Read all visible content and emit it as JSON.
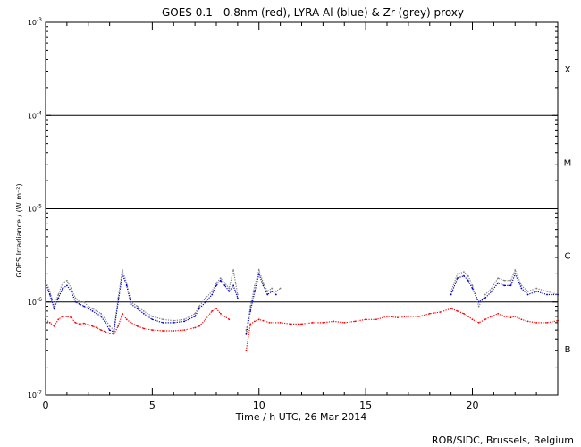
{
  "chart_data": {
    "type": "line",
    "title": "GOES 0.1—0.8nm (red), LYRA Al (blue) & Zr (grey) proxy",
    "xlabel": "Time / h UTC, 26 Mar 2014",
    "ylabel": "GOES Irradiance / (W m⁻²)",
    "xlim": [
      0,
      24
    ],
    "ylim": [
      1e-07,
      0.001
    ],
    "yscale": "log",
    "x_ticks": [
      0,
      5,
      10,
      15,
      20
    ],
    "y_tick_labels": [
      {
        "value": 1e-07,
        "base": "10",
        "exp": "-7"
      },
      {
        "value": 1e-06,
        "base": "10",
        "exp": "-6"
      },
      {
        "value": 1e-05,
        "base": "10",
        "exp": "-5"
      },
      {
        "value": 0.0001,
        "base": "10",
        "exp": "-4"
      },
      {
        "value": 0.001,
        "base": "10",
        "exp": "-3"
      }
    ],
    "flare_class_lines": [
      1e-06,
      1e-05,
      0.0001
    ],
    "flare_classes": [
      {
        "label": "B",
        "value": 3.16e-07
      },
      {
        "label": "C",
        "value": 3.16e-06
      },
      {
        "label": "M",
        "value": 3.16e-05
      },
      {
        "label": "X",
        "value": 0.000316
      }
    ],
    "series": [
      {
        "name": "GOES 0.1—0.8nm",
        "color": "#ff0000",
        "x": [
          0.0,
          0.2,
          0.4,
          0.6,
          0.8,
          1.0,
          1.2,
          1.4,
          1.6,
          1.8,
          2.0,
          2.2,
          2.4,
          2.6,
          2.8,
          3.0,
          3.2,
          3.4,
          3.6,
          3.8,
          4.0,
          4.3,
          4.6,
          5.0,
          5.5,
          6.0,
          6.5,
          7.0,
          7.2,
          7.5,
          7.8,
          8.0,
          8.2,
          8.4,
          8.6,
          9.0,
          9.4,
          9.6,
          9.8,
          10.0,
          10.2,
          10.5,
          11.0,
          11.5,
          12.0,
          12.5,
          13.0,
          13.5,
          14.0,
          14.5,
          15.0,
          15.5,
          16.0,
          16.5,
          17.0,
          17.5,
          18.0,
          18.5,
          19.0,
          19.3,
          19.6,
          19.8,
          20.0,
          20.3,
          20.6,
          20.9,
          21.2,
          21.5,
          21.8,
          22.0,
          22.3,
          22.6,
          23.0,
          23.5,
          24.0
        ],
        "y": [
          6.5e-07,
          6e-07,
          5.5e-07,
          6.5e-07,
          7e-07,
          7e-07,
          6.8e-07,
          6e-07,
          5.8e-07,
          5.9e-07,
          5.7e-07,
          5.5e-07,
          5.3e-07,
          5e-07,
          4.8e-07,
          4.6e-07,
          4.5e-07,
          5.5e-07,
          7.5e-07,
          6.5e-07,
          6e-07,
          5.5e-07,
          5.2e-07,
          5e-07,
          4.9e-07,
          4.9e-07,
          5e-07,
          5.3e-07,
          5.5e-07,
          6.5e-07,
          8e-07,
          8.5e-07,
          7.5e-07,
          7e-07,
          6.5e-07,
          null,
          3e-07,
          5.8e-07,
          6.2e-07,
          6.5e-07,
          6.3e-07,
          6e-07,
          6e-07,
          5.8e-07,
          5.8e-07,
          6e-07,
          6e-07,
          6.2e-07,
          6e-07,
          6.2e-07,
          6.5e-07,
          6.5e-07,
          7e-07,
          6.8e-07,
          7e-07,
          7e-07,
          7.5e-07,
          7.8e-07,
          8.5e-07,
          8e-07,
          7.5e-07,
          7e-07,
          6.5e-07,
          6e-07,
          6.5e-07,
          7e-07,
          7.5e-07,
          7e-07,
          6.8e-07,
          7e-07,
          6.5e-07,
          6.2e-07,
          6e-07,
          6e-07,
          6.3e-07
        ]
      },
      {
        "name": "LYRA Al",
        "color": "#0000cc",
        "x": [
          0.0,
          0.2,
          0.4,
          0.6,
          0.8,
          1.0,
          1.2,
          1.4,
          1.6,
          1.8,
          2.0,
          2.2,
          2.4,
          2.6,
          2.8,
          3.0,
          3.2,
          3.4,
          3.6,
          3.8,
          4.0,
          4.3,
          4.6,
          5.0,
          5.5,
          6.0,
          6.5,
          7.0,
          7.2,
          7.5,
          7.8,
          8.0,
          8.2,
          8.4,
          8.6,
          8.8,
          9.0,
          null,
          9.4,
          9.6,
          9.8,
          10.0,
          10.2,
          10.4,
          10.6,
          10.8,
          null,
          19.0,
          19.3,
          19.6,
          19.8,
          20.0,
          20.3,
          20.6,
          20.9,
          21.2,
          21.5,
          21.8,
          22.0,
          22.3,
          22.6,
          23.0,
          23.5,
          24.0
        ],
        "y": [
          1.6e-06,
          1.2e-06,
          8.5e-07,
          1.1e-06,
          1.4e-06,
          1.5e-06,
          1.3e-06,
          1e-06,
          9.5e-07,
          9e-07,
          8.5e-07,
          8e-07,
          7.5e-07,
          7e-07,
          6e-07,
          5e-07,
          4.8e-07,
          1e-06,
          2e-06,
          1.5e-06,
          9.5e-07,
          8.5e-07,
          7.5e-07,
          6.5e-07,
          6e-07,
          6e-07,
          6.2e-07,
          7e-07,
          8.5e-07,
          1e-06,
          1.2e-06,
          1.5e-06,
          1.7e-06,
          1.5e-06,
          1.3e-06,
          1.5e-06,
          1.1e-06,
          null,
          4.5e-07,
          8e-07,
          1.3e-06,
          2e-06,
          1.5e-06,
          1.2e-06,
          1.3e-06,
          1.2e-06,
          null,
          1.2e-06,
          1.8e-06,
          1.9e-06,
          1.7e-06,
          1.4e-06,
          1e-06,
          1.1e-06,
          1.3e-06,
          1.6e-06,
          1.5e-06,
          1.5e-06,
          2e-06,
          1.4e-06,
          1.2e-06,
          1.3e-06,
          1.2e-06,
          1.2e-06
        ]
      },
      {
        "name": "Zr",
        "color": "#808080",
        "x": [
          0.0,
          0.2,
          0.4,
          0.6,
          0.8,
          1.0,
          1.2,
          1.4,
          1.6,
          1.8,
          2.0,
          2.2,
          2.4,
          2.6,
          2.8,
          3.0,
          3.2,
          3.4,
          3.6,
          3.8,
          4.0,
          4.3,
          4.6,
          5.0,
          5.5,
          6.0,
          6.5,
          7.0,
          7.2,
          7.5,
          7.8,
          8.0,
          8.2,
          8.4,
          8.6,
          8.8,
          9.0,
          null,
          9.4,
          9.6,
          9.8,
          10.0,
          10.2,
          10.4,
          10.6,
          10.8,
          11.0,
          null,
          19.0,
          19.3,
          19.6,
          19.8,
          20.0,
          20.3,
          20.6,
          20.9,
          21.2,
          21.5,
          21.8,
          22.0,
          22.3,
          22.6,
          23.0,
          23.5,
          24.0
        ],
        "y": [
          1.7e-06,
          1.3e-06,
          9e-07,
          1.2e-06,
          1.6e-06,
          1.7e-06,
          1.4e-06,
          1.1e-06,
          1e-06,
          1e-06,
          9e-07,
          8.5e-07,
          8e-07,
          7.5e-07,
          6.5e-07,
          5.5e-07,
          5e-07,
          1.1e-06,
          2.2e-06,
          1.6e-06,
          1e-06,
          9e-07,
          8e-07,
          7e-07,
          6.5e-07,
          6.3e-07,
          6.5e-07,
          7.5e-07,
          9e-07,
          1.1e-06,
          1.3e-06,
          1.6e-06,
          1.8e-06,
          1.6e-06,
          1.4e-06,
          2.2e-06,
          1.2e-06,
          null,
          5e-07,
          9e-07,
          1.5e-06,
          2.2e-06,
          1.6e-06,
          1.3e-06,
          1.4e-06,
          1.3e-06,
          1.4e-06,
          null,
          1.3e-06,
          2e-06,
          2.1e-06,
          1.9e-06,
          1.5e-06,
          9e-07,
          1.2e-06,
          1.4e-06,
          1.8e-06,
          1.7e-06,
          1.7e-06,
          2.2e-06,
          1.5e-06,
          1.3e-06,
          1.4e-06,
          1.3e-06,
          1.2e-06
        ]
      }
    ],
    "grid": false,
    "legend": "none"
  },
  "credit": "ROB/SIDC, Brussels, Belgium"
}
